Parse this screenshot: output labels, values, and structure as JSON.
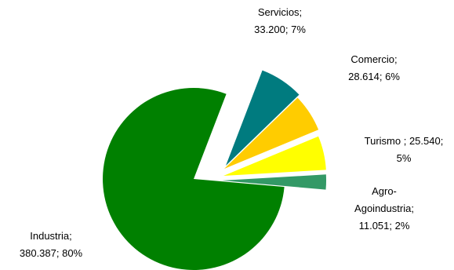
{
  "chart_data": {
    "type": "pie",
    "slices": [
      {
        "label_lines": [
          "Servicios;",
          "33.200; 7%"
        ],
        "name": "Servicios",
        "value": 33200,
        "percent": 7,
        "color": "#007b7f"
      },
      {
        "label_lines": [
          "Comercio;",
          "28.614; 6%"
        ],
        "name": "Comercio",
        "value": 28614,
        "percent": 6,
        "color": "#ffcc00"
      },
      {
        "label_lines": [
          "Turismo ; 25.540;",
          "5%"
        ],
        "name": "Turismo",
        "value": 25540,
        "percent": 5,
        "color": "#ffff00"
      },
      {
        "label_lines": [
          "Agro-",
          "Agoindustria;",
          "11.051; 2%"
        ],
        "name": "Agro-Agoindustria",
        "value": 11051,
        "percent": 2,
        "color": "#339966"
      },
      {
        "label_lines": [
          "Industria;",
          "380.387; 80%"
        ],
        "name": "Industria",
        "value": 380387,
        "percent": 80,
        "color": "#008000"
      }
    ],
    "legend": "none"
  }
}
